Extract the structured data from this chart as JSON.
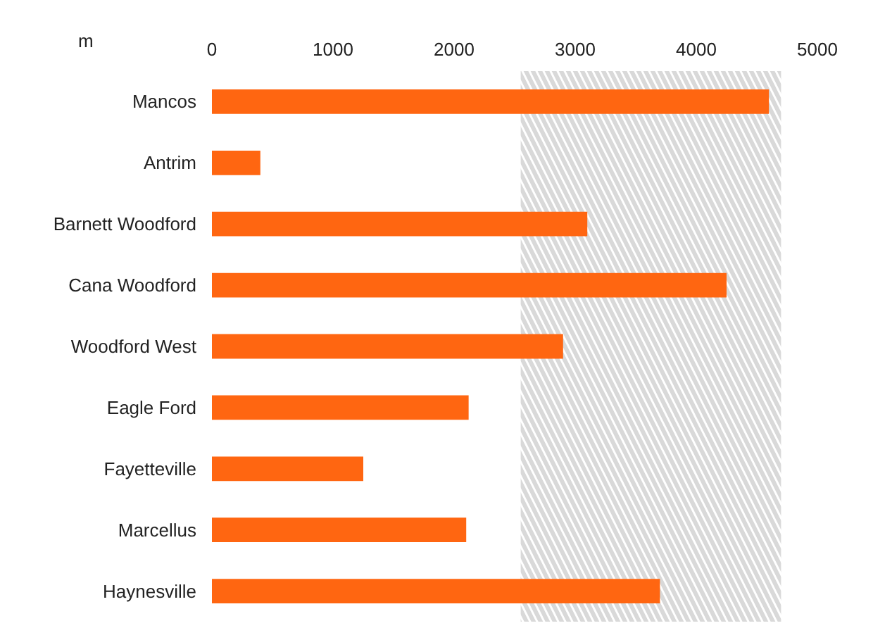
{
  "chart_data": {
    "type": "bar",
    "orientation": "horizontal",
    "xlabel": "m",
    "categories": [
      "Mancos",
      "Antrim",
      "Barnett Woodford",
      "Cana Woodford",
      "Woodford West",
      "Eagle Ford",
      "Fayetteville",
      "Marcellus",
      "Haynesville"
    ],
    "values": [
      4600,
      400,
      3100,
      4250,
      2900,
      2120,
      1250,
      2100,
      3700
    ],
    "color": "#ff6611",
    "xlim": [
      0,
      5000
    ],
    "xticks": [
      0,
      1000,
      2000,
      3000,
      4000,
      5000
    ],
    "bands": [
      {
        "axis": "x",
        "from": 2550,
        "to": 4700,
        "color": "#d9d9d9"
      }
    ],
    "grid": false
  }
}
